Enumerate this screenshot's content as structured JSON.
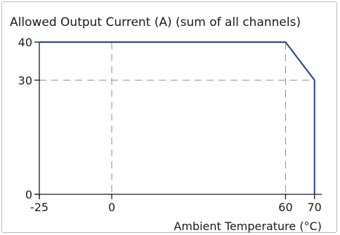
{
  "chart_data": {
    "type": "line",
    "title": "Allowed Output Current (A) (sum of all channels)",
    "xlabel": "Ambient Temperature (°C)",
    "ylabel": "",
    "xlim": [
      -25,
      72.5
    ],
    "ylim": [
      0,
      40
    ],
    "x_ticks": [
      -25,
      0,
      60,
      70
    ],
    "y_ticks": [
      0,
      30,
      40
    ],
    "grid_x": [
      0,
      60
    ],
    "grid_y": [
      30
    ],
    "series": [
      {
        "x": [
          -25,
          60,
          70,
          70
        ],
        "y": [
          40,
          40,
          30,
          0
        ]
      }
    ],
    "colors": {
      "series": "#1f3f8f",
      "grid": "#8c8c8c",
      "axis": "#1a1a1a"
    }
  }
}
